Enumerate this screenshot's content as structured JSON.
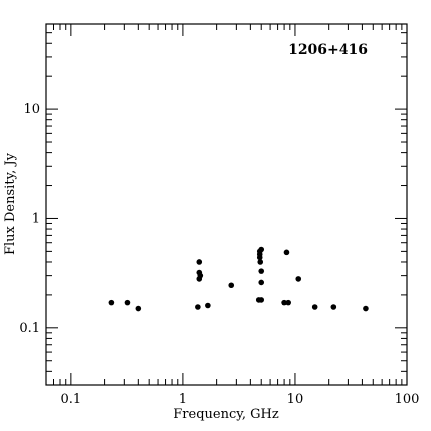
{
  "chart_data": {
    "type": "scatter",
    "title": "1206+416",
    "xlabel": "Frequency, GHz",
    "ylabel": "Flux Density, Jy",
    "x_scale": "log",
    "y_scale": "log",
    "xlim": [
      0.06,
      100
    ],
    "ylim": [
      0.03,
      60
    ],
    "x_ticks": [
      {
        "value": 0.1,
        "label": "0.1"
      },
      {
        "value": 1,
        "label": "1"
      },
      {
        "value": 10,
        "label": "10"
      },
      {
        "value": 100,
        "label": "100"
      }
    ],
    "y_ticks": [
      {
        "value": 0.1,
        "label": "0.1"
      },
      {
        "value": 1,
        "label": "1"
      },
      {
        "value": 10,
        "label": "10"
      }
    ],
    "grid": false,
    "series": [
      {
        "points": [
          {
            "x": 0.23,
            "y": 0.17
          },
          {
            "x": 0.32,
            "y": 0.17
          },
          {
            "x": 0.4,
            "y": 0.15
          },
          {
            "x": 1.36,
            "y": 0.155
          },
          {
            "x": 1.4,
            "y": 0.4
          },
          {
            "x": 1.4,
            "y": 0.32
          },
          {
            "x": 1.4,
            "y": 0.28
          },
          {
            "x": 1.43,
            "y": 0.3
          },
          {
            "x": 1.67,
            "y": 0.16
          },
          {
            "x": 2.7,
            "y": 0.245
          },
          {
            "x": 4.75,
            "y": 0.18
          },
          {
            "x": 4.85,
            "y": 0.5
          },
          {
            "x": 4.85,
            "y": 0.47
          },
          {
            "x": 4.85,
            "y": 0.44
          },
          {
            "x": 4.9,
            "y": 0.4
          },
          {
            "x": 5.0,
            "y": 0.18
          },
          {
            "x": 5.0,
            "y": 0.33
          },
          {
            "x": 5.0,
            "y": 0.26
          },
          {
            "x": 5.0,
            "y": 0.52
          },
          {
            "x": 8.0,
            "y": 0.17
          },
          {
            "x": 8.4,
            "y": 0.49
          },
          {
            "x": 8.7,
            "y": 0.17
          },
          {
            "x": 10.7,
            "y": 0.28
          },
          {
            "x": 15.0,
            "y": 0.155
          },
          {
            "x": 22.0,
            "y": 0.155
          },
          {
            "x": 43.0,
            "y": 0.15
          }
        ]
      }
    ]
  }
}
